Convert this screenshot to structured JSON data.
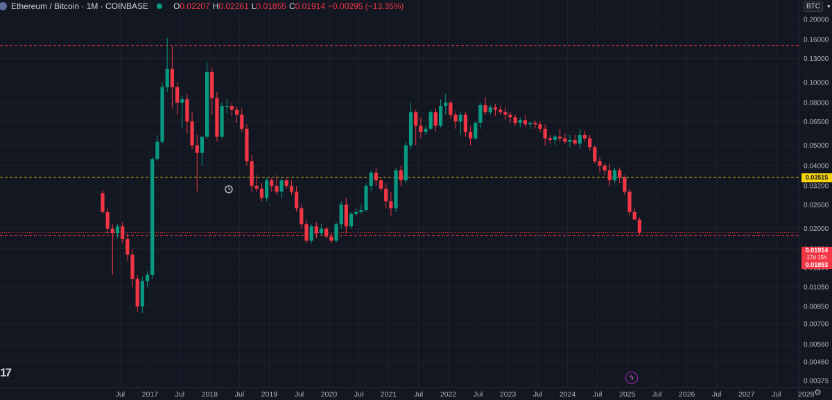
{
  "legend": {
    "title": "Ethereum / Bitcoin · 1M · COINBASE",
    "o_label": "O",
    "o": "0.02207",
    "h_label": "H",
    "h": "0.02261",
    "l_label": "L",
    "l": "0.01855",
    "c_label": "C",
    "c": "0.01914",
    "change": "−0.00295 (−13.35%)"
  },
  "currency_label": "BTC",
  "price_tags": {
    "last": "0.01914",
    "countdown": "17d 15h",
    "low": "0.01853",
    "marked": "0.03515"
  },
  "logo_text": "17",
  "colors": {
    "up": "#089981",
    "down": "#f23645",
    "marked": "#f5d40a",
    "bg": "#131722"
  },
  "chart_data": {
    "type": "candlestick",
    "title": "Ethereum / Bitcoin · 1M · COINBASE",
    "y_scale": "log",
    "ylim": [
      0.00345,
      0.22
    ],
    "y_ticks": [
      "0.20000",
      "0.16000",
      "0.13000",
      "0.10000",
      "0.08000",
      "0.06500",
      "0.05000",
      "0.04000",
      "0.03200",
      "0.02600",
      "0.02000",
      "0.01600",
      "0.01300",
      "0.01050",
      "0.00850",
      "0.00700",
      "0.00560",
      "0.00460",
      "0.00375"
    ],
    "x_ticks": [
      "Jul",
      "2017",
      "Jul",
      "2018",
      "Jul",
      "2019",
      "Jul",
      "2020",
      "Jul",
      "2021",
      "Jul",
      "2022",
      "Jul",
      "2023",
      "Jul",
      "2024",
      "Jul",
      "2025",
      "Jul",
      "2026",
      "Jul",
      "2027",
      "Jul",
      "2028"
    ],
    "horizontal_lines": [
      {
        "price": 0.15,
        "style": "dashed",
        "color": "#f23645"
      },
      {
        "price": 0.03515,
        "style": "dashed",
        "color": "#f5d40a"
      },
      {
        "price": 0.01914,
        "style": "dotted",
        "color": "#f23645"
      },
      {
        "price": 0.01853,
        "style": "dashed",
        "color": "#f23645"
      }
    ],
    "start": "2016-05",
    "candles": [
      [
        0.0295,
        0.0305,
        0.0235,
        0.024
      ],
      [
        0.024,
        0.025,
        0.019,
        0.02
      ],
      [
        0.02,
        0.021,
        0.012,
        0.019
      ],
      [
        0.019,
        0.021,
        0.018,
        0.0205
      ],
      [
        0.0205,
        0.0215,
        0.017,
        0.0178
      ],
      [
        0.0178,
        0.019,
        0.014,
        0.015
      ],
      [
        0.015,
        0.016,
        0.0105,
        0.0115
      ],
      [
        0.0115,
        0.012,
        0.008,
        0.0085
      ],
      [
        0.0085,
        0.0118,
        0.0079,
        0.0112
      ],
      [
        0.0112,
        0.0125,
        0.0105,
        0.012
      ],
      [
        0.012,
        0.044,
        0.0115,
        0.043
      ],
      [
        0.043,
        0.056,
        0.042,
        0.052
      ],
      [
        0.052,
        0.1,
        0.051,
        0.095
      ],
      [
        0.095,
        0.163,
        0.09,
        0.116
      ],
      [
        0.116,
        0.148,
        0.075,
        0.095
      ],
      [
        0.095,
        0.1,
        0.07,
        0.08
      ],
      [
        0.08,
        0.086,
        0.06,
        0.083
      ],
      [
        0.083,
        0.088,
        0.057,
        0.065
      ],
      [
        0.065,
        0.072,
        0.048,
        0.05
      ],
      [
        0.05,
        0.056,
        0.03,
        0.046
      ],
      [
        0.046,
        0.055,
        0.04,
        0.055
      ],
      [
        0.055,
        0.125,
        0.054,
        0.112
      ],
      [
        0.112,
        0.118,
        0.07,
        0.084
      ],
      [
        0.084,
        0.09,
        0.052,
        0.055
      ],
      [
        0.055,
        0.08,
        0.054,
        0.077
      ],
      [
        0.077,
        0.083,
        0.071,
        0.077
      ],
      [
        0.077,
        0.08,
        0.069,
        0.074
      ],
      [
        0.074,
        0.077,
        0.064,
        0.07
      ],
      [
        0.07,
        0.075,
        0.058,
        0.06
      ],
      [
        0.06,
        0.063,
        0.04,
        0.042
      ],
      [
        0.042,
        0.045,
        0.03,
        0.032
      ],
      [
        0.032,
        0.036,
        0.03,
        0.031
      ],
      [
        0.031,
        0.033,
        0.027,
        0.028
      ],
      [
        0.028,
        0.035,
        0.027,
        0.034
      ],
      [
        0.034,
        0.035,
        0.03,
        0.032
      ],
      [
        0.032,
        0.036,
        0.029,
        0.03
      ],
      [
        0.03,
        0.035,
        0.028,
        0.034
      ],
      [
        0.034,
        0.035,
        0.031,
        0.032
      ],
      [
        0.032,
        0.034,
        0.029,
        0.03
      ],
      [
        0.03,
        0.032,
        0.024,
        0.025
      ],
      [
        0.025,
        0.026,
        0.02,
        0.021
      ],
      [
        0.021,
        0.022,
        0.017,
        0.0175
      ],
      [
        0.0175,
        0.021,
        0.017,
        0.0205
      ],
      [
        0.0205,
        0.0215,
        0.018,
        0.019
      ],
      [
        0.019,
        0.021,
        0.0185,
        0.02
      ],
      [
        0.02,
        0.0205,
        0.018,
        0.0183
      ],
      [
        0.0183,
        0.019,
        0.017,
        0.0175
      ],
      [
        0.0175,
        0.0215,
        0.0172,
        0.021
      ],
      [
        0.021,
        0.027,
        0.02,
        0.026
      ],
      [
        0.026,
        0.028,
        0.019,
        0.0205
      ],
      [
        0.0205,
        0.024,
        0.02,
        0.0235
      ],
      [
        0.0235,
        0.025,
        0.023,
        0.024
      ],
      [
        0.024,
        0.026,
        0.0235,
        0.0245
      ],
      [
        0.0245,
        0.033,
        0.024,
        0.032
      ],
      [
        0.032,
        0.038,
        0.03,
        0.037
      ],
      [
        0.037,
        0.039,
        0.032,
        0.034
      ],
      [
        0.034,
        0.035,
        0.03,
        0.031
      ],
      [
        0.031,
        0.033,
        0.025,
        0.027
      ],
      [
        0.027,
        0.03,
        0.023,
        0.025
      ],
      [
        0.025,
        0.039,
        0.024,
        0.038
      ],
      [
        0.038,
        0.04,
        0.032,
        0.034
      ],
      [
        0.034,
        0.052,
        0.033,
        0.05
      ],
      [
        0.05,
        0.08,
        0.048,
        0.072
      ],
      [
        0.072,
        0.074,
        0.05,
        0.062
      ],
      [
        0.062,
        0.068,
        0.054,
        0.058
      ],
      [
        0.058,
        0.062,
        0.056,
        0.06
      ],
      [
        0.06,
        0.074,
        0.059,
        0.072
      ],
      [
        0.072,
        0.075,
        0.058,
        0.062
      ],
      [
        0.062,
        0.083,
        0.061,
        0.077
      ],
      [
        0.077,
        0.088,
        0.07,
        0.08
      ],
      [
        0.08,
        0.082,
        0.067,
        0.07
      ],
      [
        0.07,
        0.073,
        0.06,
        0.065
      ],
      [
        0.065,
        0.072,
        0.056,
        0.07
      ],
      [
        0.07,
        0.072,
        0.055,
        0.058
      ],
      [
        0.058,
        0.062,
        0.05,
        0.054
      ],
      [
        0.054,
        0.065,
        0.053,
        0.064
      ],
      [
        0.064,
        0.08,
        0.06,
        0.078
      ],
      [
        0.078,
        0.085,
        0.07,
        0.072
      ],
      [
        0.072,
        0.078,
        0.07,
        0.076
      ],
      [
        0.076,
        0.079,
        0.069,
        0.074
      ],
      [
        0.074,
        0.077,
        0.07,
        0.072
      ],
      [
        0.072,
        0.076,
        0.066,
        0.07
      ],
      [
        0.07,
        0.072,
        0.064,
        0.068
      ],
      [
        0.068,
        0.07,
        0.062,
        0.064
      ],
      [
        0.064,
        0.068,
        0.061,
        0.066
      ],
      [
        0.066,
        0.07,
        0.061,
        0.063
      ],
      [
        0.063,
        0.065,
        0.06,
        0.064
      ],
      [
        0.064,
        0.066,
        0.06,
        0.063
      ],
      [
        0.063,
        0.065,
        0.058,
        0.06
      ],
      [
        0.06,
        0.063,
        0.05,
        0.054
      ],
      [
        0.054,
        0.056,
        0.051,
        0.053
      ],
      [
        0.053,
        0.056,
        0.05,
        0.055
      ],
      [
        0.055,
        0.06,
        0.052,
        0.054
      ],
      [
        0.054,
        0.057,
        0.051,
        0.052
      ],
      [
        0.052,
        0.056,
        0.049,
        0.053
      ],
      [
        0.053,
        0.056,
        0.05,
        0.051
      ],
      [
        0.051,
        0.06,
        0.048,
        0.056
      ],
      [
        0.056,
        0.059,
        0.052,
        0.054
      ],
      [
        0.054,
        0.056,
        0.047,
        0.049
      ],
      [
        0.049,
        0.05,
        0.041,
        0.042
      ],
      [
        0.042,
        0.044,
        0.037,
        0.04
      ],
      [
        0.04,
        0.041,
        0.036,
        0.038
      ],
      [
        0.038,
        0.041,
        0.032,
        0.034
      ],
      [
        0.034,
        0.039,
        0.033,
        0.038
      ],
      [
        0.038,
        0.039,
        0.033,
        0.035
      ],
      [
        0.035,
        0.036,
        0.029,
        0.03
      ],
      [
        0.03,
        0.031,
        0.023,
        0.024
      ],
      [
        0.024,
        0.025,
        0.022,
        0.0221
      ],
      [
        0.02207,
        0.02261,
        0.01855,
        0.01914
      ]
    ]
  }
}
